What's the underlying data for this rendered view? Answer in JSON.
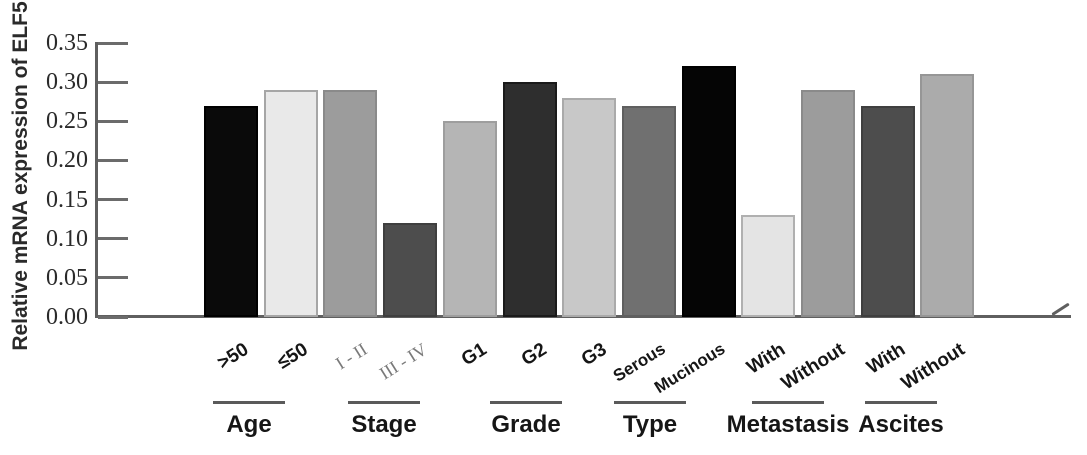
{
  "chart_data": {
    "type": "bar",
    "title": "",
    "xlabel": "",
    "ylabel": "Relative mRNA expression of ELF5",
    "ylim": [
      0,
      0.35
    ],
    "ytick_labels": [
      "0.00",
      "0.05",
      "0.10",
      "0.15",
      "0.20",
      "0.25",
      "0.30",
      "0.35"
    ],
    "grid": false,
    "legend": false,
    "colors": {
      "axis": "#5f5f5f",
      "tick": "#6b6b6b",
      "text": "#161616",
      "muted_text": "#7a7a7a"
    },
    "groups": [
      {
        "label": "Age",
        "bars": [
          {
            "label": ">50",
            "value": 0.27,
            "fill": "#0a0a0a",
            "border": "#000000"
          },
          {
            "label": "≤50",
            "value": 0.29,
            "fill": "#e9e9e9",
            "border": "#a6a6a6"
          }
        ]
      },
      {
        "label": "Stage",
        "bars": [
          {
            "label": "I - II",
            "value": 0.29,
            "fill": "#9c9c9c",
            "border": "#8a8a8a",
            "serif": true
          },
          {
            "label": "III - IV",
            "value": 0.12,
            "fill": "#4d4d4d",
            "border": "#3f3f3f",
            "serif": true
          }
        ]
      },
      {
        "label": "Grade",
        "bars": [
          {
            "label": "G1",
            "value": 0.25,
            "fill": "#b5b5b5",
            "border": "#9e9e9e"
          },
          {
            "label": "G2",
            "value": 0.3,
            "fill": "#2e2e2e",
            "border": "#1a1a1a"
          },
          {
            "label": "G3",
            "value": 0.28,
            "fill": "#c8c8c8",
            "border": "#aaaaaa"
          }
        ]
      },
      {
        "label": "Type",
        "bars": [
          {
            "label": "Serous",
            "value": 0.27,
            "fill": "#707070",
            "border": "#5f5f5f",
            "small": true
          },
          {
            "label": "Mucinous",
            "value": 0.32,
            "fill": "#050505",
            "border": "#000000",
            "small": true
          }
        ]
      },
      {
        "label": "Metastasis",
        "bars": [
          {
            "label": "With",
            "value": 0.13,
            "fill": "#e4e4e4",
            "border": "#b0b0b0"
          },
          {
            "label": "Without",
            "value": 0.29,
            "fill": "#9c9c9c",
            "border": "#8a8a8a"
          }
        ]
      },
      {
        "label": "Ascites",
        "bars": [
          {
            "label": "With",
            "value": 0.27,
            "fill": "#4d4d4d",
            "border": "#3f3f3f"
          },
          {
            "label": "Without",
            "value": 0.31,
            "fill": "#ababab",
            "border": "#969696"
          }
        ]
      }
    ]
  }
}
